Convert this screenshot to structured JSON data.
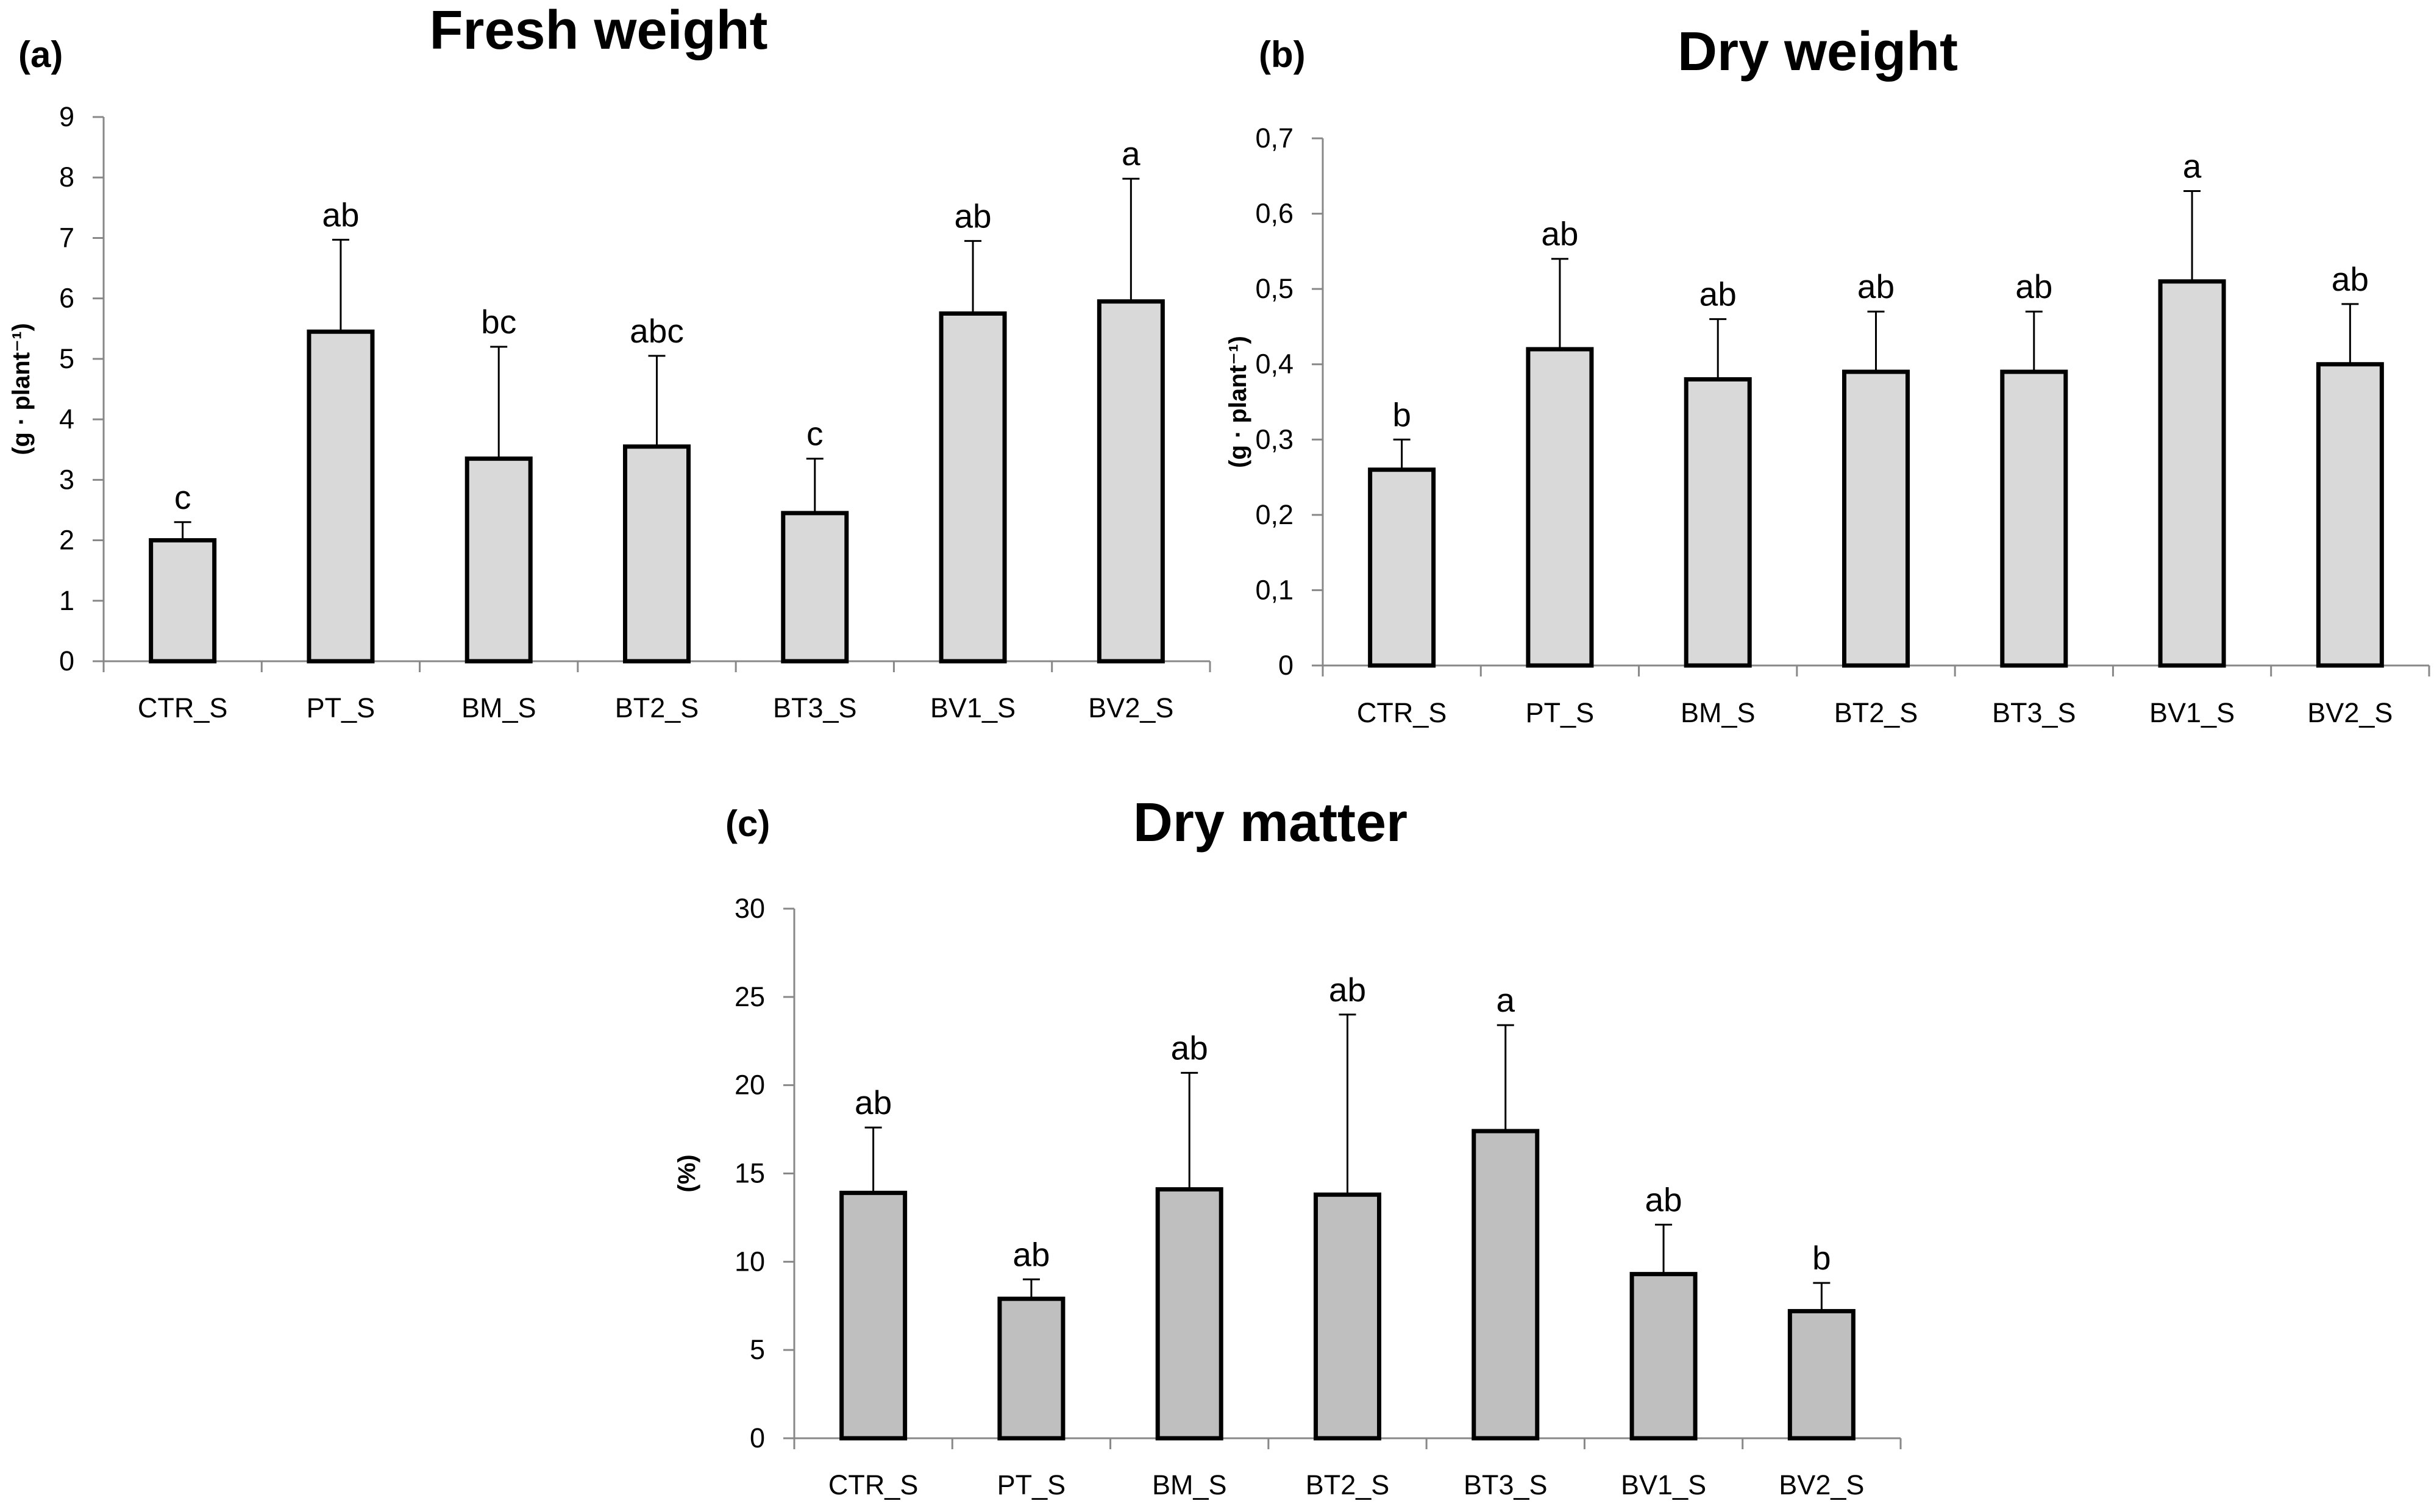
{
  "figure": {
    "colors": {
      "bar_fill_a": "#d9d9d9",
      "bar_fill_b": "#d9d9d9",
      "bar_fill_c": "#bfbfbf",
      "bar_stroke": "#000000",
      "axis": "#888888",
      "text": "#000000"
    }
  },
  "chart_data": [
    {
      "id": "a",
      "type": "bar",
      "panel_label": "(a)",
      "title": "Fresh weight",
      "xlabel": "",
      "ylabel": "(g · plant⁻¹)",
      "categories": [
        "CTR_S",
        "PT_S",
        "BM_S",
        "BT2_S",
        "BT3_S",
        "BV1_S",
        "BV2_S"
      ],
      "values": [
        2.0,
        5.45,
        3.35,
        3.55,
        2.45,
        5.75,
        5.95
      ],
      "errors": [
        0.3,
        1.52,
        1.85,
        1.5,
        0.9,
        1.2,
        2.03
      ],
      "letters": [
        "c",
        "ab",
        "bc",
        "abc",
        "c",
        "ab",
        "a"
      ],
      "ylim": [
        0,
        9
      ],
      "yticks": [
        "0",
        "1",
        "2",
        "3",
        "4",
        "5",
        "6",
        "7",
        "8",
        "9"
      ],
      "grid": false
    },
    {
      "id": "b",
      "type": "bar",
      "panel_label": "(b)",
      "title": "Dry weight",
      "xlabel": "",
      "ylabel": "(g · plant⁻¹)",
      "categories": [
        "CTR_S",
        "PT_S",
        "BM_S",
        "BT2_S",
        "BT3_S",
        "BV1_S",
        "BV2_S"
      ],
      "values": [
        0.26,
        0.42,
        0.38,
        0.39,
        0.39,
        0.51,
        0.4
      ],
      "errors": [
        0.04,
        0.12,
        0.08,
        0.08,
        0.08,
        0.12,
        0.08
      ],
      "letters": [
        "b",
        "ab",
        "ab",
        "ab",
        "ab",
        "a",
        "ab"
      ],
      "ylim": [
        0,
        0.7
      ],
      "yticks": [
        "0",
        "0,1",
        "0,2",
        "0,3",
        "0,4",
        "0,5",
        "0,6",
        "0,7"
      ],
      "grid": false
    },
    {
      "id": "c",
      "type": "bar",
      "panel_label": "(c)",
      "title": "Dry matter",
      "xlabel": "",
      "ylabel": "(%)",
      "categories": [
        "CTR_S",
        "PT_S",
        "BM_S",
        "BT2_S",
        "BT3_S",
        "BV1_S",
        "BV2_S"
      ],
      "values": [
        13.9,
        7.9,
        14.1,
        13.8,
        17.4,
        9.3,
        7.2
      ],
      "errors": [
        3.7,
        1.1,
        6.6,
        10.2,
        6.0,
        2.8,
        1.6
      ],
      "letters": [
        "ab",
        "ab",
        "ab",
        "ab",
        "a",
        "ab",
        "b"
      ],
      "ylim": [
        0,
        30
      ],
      "yticks": [
        "0",
        "5",
        "10",
        "15",
        "20",
        "25",
        "30"
      ],
      "grid": false
    }
  ]
}
